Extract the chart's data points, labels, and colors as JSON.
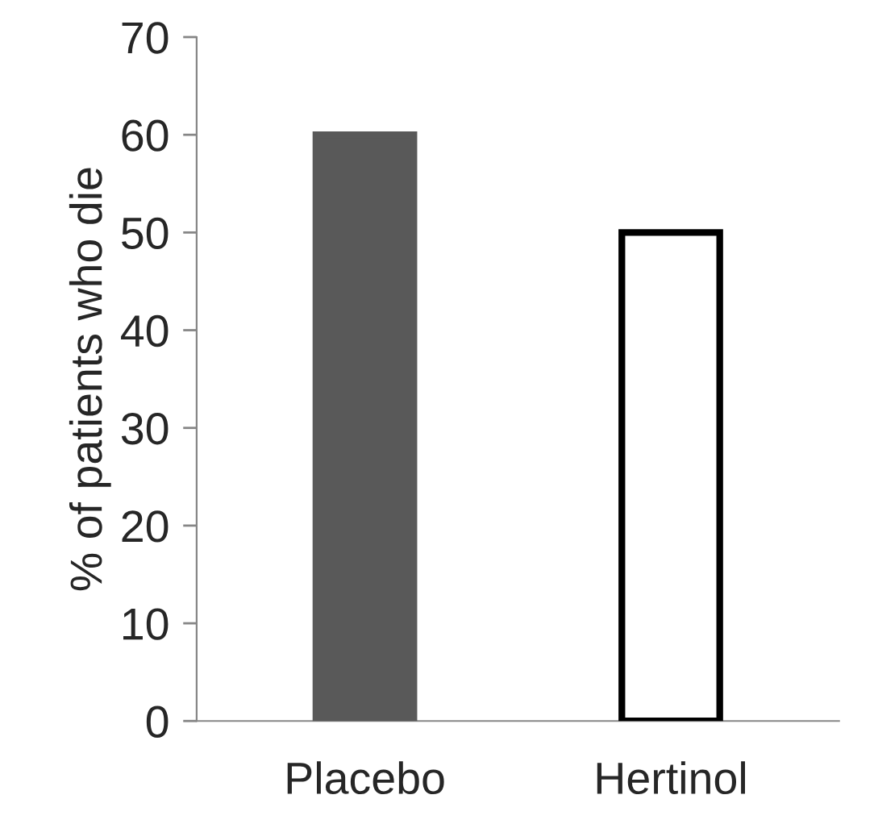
{
  "chart_data": {
    "type": "bar",
    "ylabel": "% of patients who die",
    "categories": [
      "Placebo",
      "Hertinol"
    ],
    "values": [
      60,
      50
    ],
    "colors": [
      "#595959",
      "#ffffff"
    ],
    "ylim": [
      0,
      70
    ],
    "yticks": [
      0,
      10,
      20,
      30,
      40,
      50,
      60,
      70
    ],
    "grid": false,
    "legend": false
  }
}
